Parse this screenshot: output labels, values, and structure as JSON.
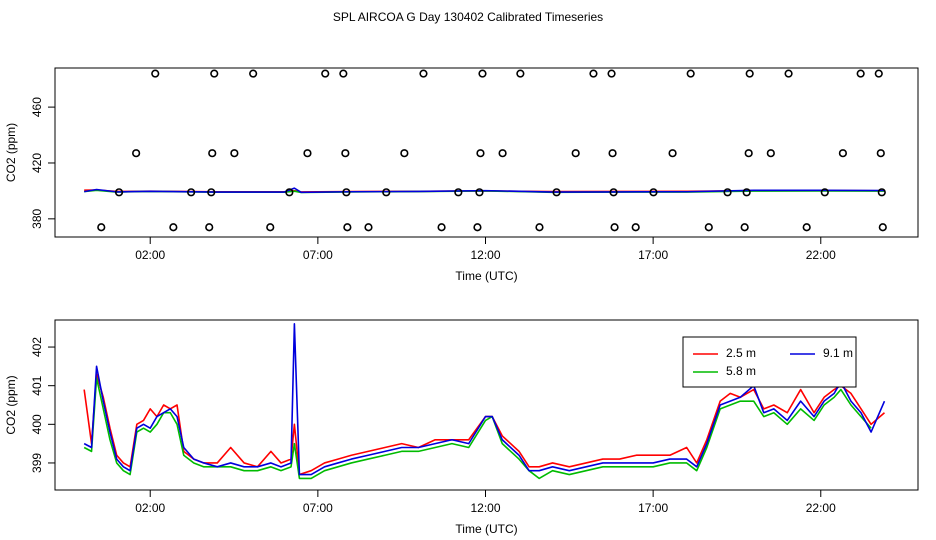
{
  "chart_data": [
    {
      "type": "line",
      "title": "SPL AIRCOA G  Day 130402  Calibrated Timeseries",
      "x_label": "Time (UTC)",
      "y_label": "CO2 (ppm)",
      "xlim": [
        -0.84,
        24.9
      ],
      "ylim": [
        367,
        488
      ],
      "xticks": [
        {
          "value": 2,
          "label": "02:00"
        },
        {
          "value": 7,
          "label": "07:00"
        },
        {
          "value": 12,
          "label": "12:00"
        },
        {
          "value": 17,
          "label": "17:00"
        },
        {
          "value": 22,
          "label": "22:00"
        }
      ],
      "yticks": [
        380,
        420,
        460
      ],
      "series": [
        {
          "type": "line",
          "color": "#ff0000",
          "x": [
            0.03,
            0.4,
            1.0,
            2.0,
            4.0,
            6.0,
            6.3,
            6.5,
            8,
            10,
            12,
            14,
            16,
            18,
            20,
            22,
            23.9
          ],
          "values": [
            400.5,
            400.6,
            399.6,
            399.8,
            399.4,
            399.4,
            400.2,
            399.3,
            399.5,
            399.7,
            400.0,
            399.5,
            399.6,
            399.7,
            400.2,
            400.3,
            400.1
          ]
        },
        {
          "type": "line",
          "color": "#00bb00",
          "x": [
            0.03,
            0.4,
            1.0,
            2.0,
            4.0,
            6.0,
            6.3,
            6.5,
            8,
            10,
            12,
            14,
            16,
            18,
            20,
            22,
            23.9
          ],
          "values": [
            399.5,
            400.4,
            399.2,
            399.6,
            399.1,
            399.1,
            399.8,
            398.9,
            399.3,
            399.5,
            400.0,
            399.0,
            399.2,
            399.2,
            399.9,
            400.0,
            399.9
          ]
        },
        {
          "type": "line",
          "color": "#0000dd",
          "x": [
            0.03,
            0.4,
            1.0,
            2.0,
            4.0,
            6.0,
            6.3,
            6.5,
            8,
            10,
            12,
            14,
            16,
            18,
            20,
            22,
            23.9
          ],
          "values": [
            399.5,
            401.0,
            399.3,
            399.7,
            399.2,
            399.2,
            402.0,
            399.0,
            399.4,
            399.6,
            400.2,
            399.2,
            399.3,
            399.4,
            400.4,
            400.4,
            400.3
          ]
        },
        {
          "type": "scatter",
          "color": "#000000",
          "x": [
            2.15,
            3.91,
            5.07,
            7.22,
            7.76,
            10.15,
            11.91,
            13.04,
            15.22,
            15.76,
            18.12,
            19.88,
            21.04,
            23.19,
            23.73
          ],
          "values": [
            484,
            484,
            484,
            484,
            484,
            484,
            484,
            484,
            484,
            484,
            484,
            484,
            484,
            484,
            484
          ]
        },
        {
          "type": "scatter",
          "color": "#000000",
          "x": [
            1.58,
            3.85,
            4.51,
            6.69,
            7.82,
            9.58,
            11.85,
            12.51,
            14.69,
            15.79,
            17.58,
            19.85,
            20.51,
            22.66,
            23.79
          ],
          "values": [
            427,
            427,
            427,
            427,
            427,
            427,
            427,
            427,
            427,
            427,
            427,
            427,
            427,
            427,
            427
          ]
        },
        {
          "type": "scatter",
          "color": "#000000",
          "x": [
            1.07,
            3.22,
            3.82,
            6.15,
            7.85,
            9.04,
            11.19,
            11.82,
            14.12,
            15.82,
            17.01,
            19.22,
            19.79,
            22.12,
            23.82
          ],
          "values": [
            399,
            399,
            399,
            399,
            399,
            399,
            399,
            399,
            399,
            399,
            399,
            399,
            399,
            399,
            399
          ]
        },
        {
          "type": "scatter",
          "color": "#000000",
          "x": [
            0.54,
            2.69,
            3.76,
            5.58,
            7.88,
            8.51,
            10.69,
            11.76,
            13.61,
            15.85,
            16.48,
            18.66,
            19.73,
            21.58,
            23.85
          ],
          "values": [
            374,
            374,
            374,
            374,
            374,
            374,
            374,
            374,
            374,
            374,
            374,
            374,
            374,
            374,
            374
          ]
        }
      ]
    },
    {
      "type": "line",
      "x_label": "Time (UTC)",
      "y_label": "CO2 (ppm)",
      "xlim": [
        -0.84,
        24.9
      ],
      "ylim": [
        398.3,
        402.7
      ],
      "xticks": [
        {
          "value": 2,
          "label": "02:00"
        },
        {
          "value": 7,
          "label": "07:00"
        },
        {
          "value": 12,
          "label": "12:00"
        },
        {
          "value": 17,
          "label": "17:00"
        },
        {
          "value": 22,
          "label": "22:00"
        }
      ],
      "yticks": [
        399,
        400,
        401,
        402
      ],
      "legend": "top-right",
      "x": [
        0.03,
        0.25,
        0.4,
        0.6,
        0.8,
        1.0,
        1.2,
        1.4,
        1.6,
        1.8,
        2.0,
        2.2,
        2.4,
        2.6,
        2.8,
        3.0,
        3.3,
        3.6,
        4.0,
        4.4,
        4.8,
        5.2,
        5.6,
        5.9,
        6.2,
        6.3,
        6.45,
        6.8,
        7.2,
        7.6,
        8.0,
        8.5,
        9.0,
        9.5,
        10.0,
        10.5,
        11.0,
        11.5,
        12.0,
        12.2,
        12.5,
        13.0,
        13.3,
        13.6,
        14.0,
        14.5,
        15.0,
        15.5,
        16.0,
        16.5,
        17.0,
        17.5,
        18.0,
        18.3,
        18.6,
        19.0,
        19.3,
        19.6,
        20.0,
        20.3,
        20.6,
        21.0,
        21.4,
        21.8,
        22.1,
        22.4,
        22.6,
        22.9,
        23.2,
        23.5,
        23.9
      ],
      "series": [
        {
          "name": "2.5 m",
          "color": "#ff0000",
          "values": [
            400.9,
            399.5,
            401.3,
            400.7,
            399.9,
            399.2,
            399.0,
            398.9,
            400.0,
            400.1,
            400.4,
            400.2,
            400.5,
            400.4,
            400.5,
            399.3,
            399.1,
            399.0,
            399.0,
            399.4,
            399.0,
            398.9,
            399.3,
            399.0,
            399.1,
            400.0,
            398.7,
            398.8,
            399.0,
            399.1,
            399.2,
            399.3,
            399.4,
            399.5,
            399.4,
            399.6,
            399.6,
            399.6,
            400.2,
            400.2,
            399.7,
            399.3,
            398.9,
            398.9,
            399.0,
            398.9,
            399.0,
            399.1,
            399.1,
            399.2,
            399.2,
            399.2,
            399.4,
            399.0,
            399.6,
            400.6,
            400.8,
            400.7,
            400.9,
            400.4,
            400.5,
            400.3,
            400.9,
            400.3,
            400.7,
            400.9,
            401.0,
            400.8,
            400.4,
            400.0,
            400.3
          ]
        },
        {
          "name": "5.8 m",
          "color": "#00bb00",
          "values": [
            399.4,
            399.3,
            401.2,
            400.4,
            399.6,
            399.0,
            398.8,
            398.7,
            399.8,
            399.9,
            399.8,
            400.0,
            400.3,
            400.3,
            400.0,
            399.2,
            399.0,
            398.9,
            398.9,
            398.9,
            398.8,
            398.8,
            398.9,
            398.8,
            398.9,
            399.5,
            398.6,
            398.6,
            398.8,
            398.9,
            399.0,
            399.1,
            399.2,
            399.3,
            399.3,
            399.4,
            399.5,
            399.4,
            400.1,
            400.2,
            399.5,
            399.1,
            398.8,
            398.6,
            398.8,
            398.7,
            398.8,
            398.9,
            398.9,
            398.9,
            398.9,
            399.0,
            399.0,
            398.8,
            399.4,
            400.4,
            400.5,
            400.6,
            400.6,
            400.2,
            400.3,
            400.0,
            400.4,
            400.1,
            400.5,
            400.7,
            400.9,
            400.5,
            400.2,
            399.9,
            null
          ]
        },
        {
          "name": "9.1 m",
          "color": "#0000dd",
          "values": [
            399.5,
            399.4,
            401.5,
            400.6,
            399.8,
            399.1,
            398.9,
            398.8,
            399.9,
            400.0,
            399.9,
            400.2,
            400.3,
            400.4,
            400.2,
            399.4,
            399.1,
            399.0,
            398.9,
            399.0,
            398.9,
            398.9,
            399.0,
            398.9,
            399.0,
            402.6,
            398.7,
            398.7,
            398.9,
            399.0,
            399.1,
            399.2,
            399.3,
            399.4,
            399.4,
            399.5,
            399.6,
            399.5,
            400.2,
            400.2,
            399.6,
            399.2,
            398.8,
            398.8,
            398.9,
            398.8,
            398.9,
            399.0,
            399.0,
            399.0,
            399.0,
            399.1,
            399.1,
            398.9,
            399.5,
            400.5,
            400.6,
            400.7,
            401.0,
            400.3,
            400.4,
            400.1,
            400.6,
            400.2,
            400.6,
            400.8,
            401.1,
            400.6,
            400.3,
            399.8,
            400.6
          ]
        }
      ]
    }
  ]
}
